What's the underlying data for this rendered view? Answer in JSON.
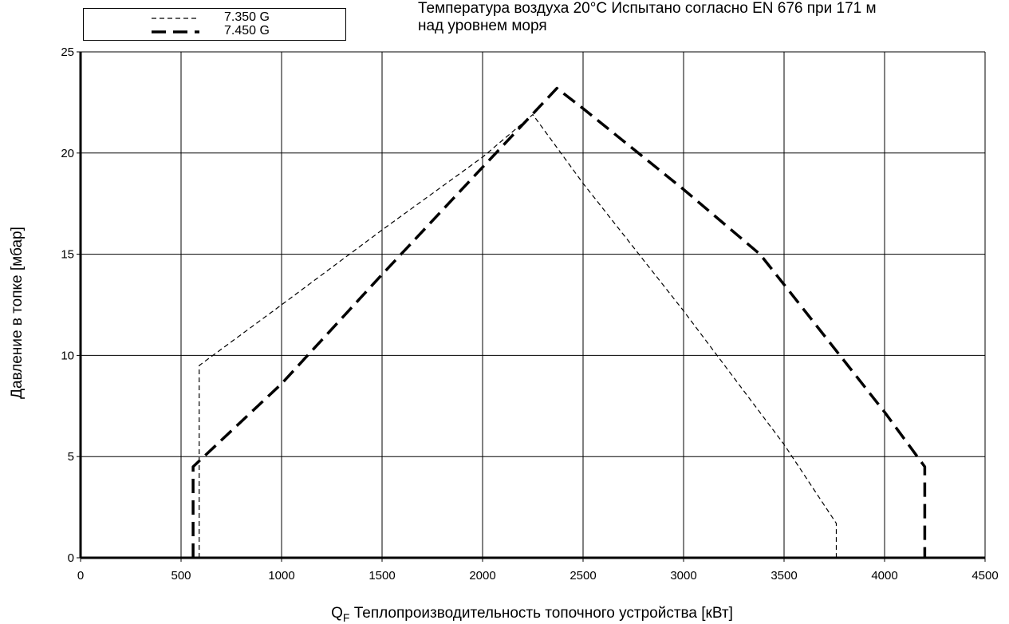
{
  "header_note": {
    "line1": "Температура воздуха 20°C Испытано согласно EN 676 при 171 м",
    "line2": "над уровнем моря"
  },
  "chart_data": {
    "type": "line",
    "title": "",
    "xlabel_symbol": "Q",
    "xlabel_subscript": "F",
    "xlabel_text": "Теплопроизводительность топочного устройства [кВт]",
    "ylabel": "Давление в топке [мбар]",
    "xlim": [
      0,
      4500
    ],
    "ylim": [
      0,
      25
    ],
    "x_ticks": [
      0,
      500,
      1000,
      1500,
      2000,
      2500,
      3000,
      3500,
      4000,
      4500
    ],
    "y_ticks": [
      0,
      5,
      10,
      15,
      20,
      25
    ],
    "grid": true,
    "legend_placement": "top-left",
    "series": [
      {
        "name": "7.350 G",
        "style": "short-dash",
        "color": "#000000",
        "points": [
          [
            590,
            0
          ],
          [
            590,
            9.5
          ],
          [
            1000,
            12.5
          ],
          [
            1500,
            16.2
          ],
          [
            2000,
            19.8
          ],
          [
            2250,
            21.9
          ],
          [
            2500,
            18.5
          ],
          [
            3000,
            12.2
          ],
          [
            3500,
            5.6
          ],
          [
            3760,
            1.7
          ],
          [
            3760,
            0
          ]
        ]
      },
      {
        "name": "7.450 G",
        "style": "long-dash-bold",
        "color": "#000000",
        "points": [
          [
            560,
            0
          ],
          [
            560,
            4.5
          ],
          [
            1000,
            8.6
          ],
          [
            1500,
            14.0
          ],
          [
            2000,
            19.3
          ],
          [
            2370,
            23.2
          ],
          [
            2500,
            22.2
          ],
          [
            3000,
            18.2
          ],
          [
            3380,
            15.0
          ],
          [
            3500,
            13.5
          ],
          [
            4000,
            7.2
          ],
          [
            4200,
            4.5
          ],
          [
            4200,
            0
          ]
        ]
      }
    ]
  }
}
